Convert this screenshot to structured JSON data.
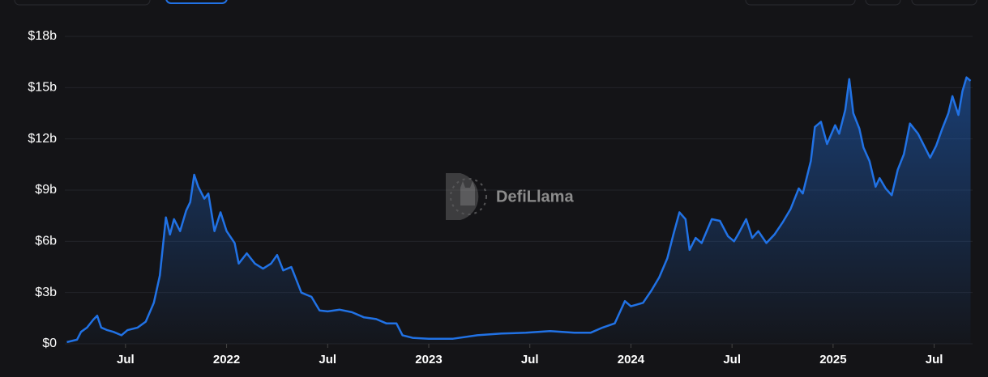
{
  "chart_data": {
    "type": "area",
    "x": [
      2021.21,
      2021.26,
      2021.28,
      2021.31,
      2021.34,
      2021.36,
      2021.38,
      2021.41,
      2021.44,
      2021.48,
      2021.51,
      2021.56,
      2021.6,
      2021.64,
      2021.67,
      2021.7,
      2021.72,
      2021.74,
      2021.77,
      2021.8,
      2021.82,
      2021.84,
      2021.86,
      2021.89,
      2021.91,
      2021.94,
      2021.97,
      2022.0,
      2022.04,
      2022.06,
      2022.1,
      2022.14,
      2022.18,
      2022.22,
      2022.25,
      2022.28,
      2022.32,
      2022.34,
      2022.37,
      2022.42,
      2022.46,
      2022.5,
      2022.56,
      2022.62,
      2022.68,
      2022.74,
      2022.79,
      2022.84,
      2022.87,
      2022.92,
      2023.0,
      2023.12,
      2023.24,
      2023.36,
      2023.48,
      2023.6,
      2023.72,
      2023.8,
      2023.86,
      2023.92,
      2023.97,
      2024.0,
      2024.06,
      2024.1,
      2024.14,
      2024.18,
      2024.21,
      2024.24,
      2024.27,
      2024.29,
      2024.32,
      2024.35,
      2024.4,
      2024.44,
      2024.48,
      2024.51,
      2024.53,
      2024.57,
      2024.6,
      2024.63,
      2024.67,
      2024.71,
      2024.75,
      2024.79,
      2024.83,
      2024.85,
      2024.89,
      2024.91,
      2024.94,
      2024.97,
      2025.01,
      2025.03,
      2025.06,
      2025.08,
      2025.1,
      2025.13,
      2025.15,
      2025.18,
      2025.21,
      2025.23,
      2025.26,
      2025.29,
      2025.32,
      2025.35,
      2025.38,
      2025.42,
      2025.45,
      2025.48,
      2025.51,
      2025.54,
      2025.57,
      2025.59,
      2025.62,
      2025.64,
      2025.66,
      2025.68
    ],
    "values": [
      0.1,
      0.24,
      0.7,
      0.95,
      1.4,
      1.65,
      0.95,
      0.8,
      0.7,
      0.5,
      0.8,
      0.95,
      1.3,
      2.4,
      4.0,
      7.4,
      6.4,
      7.3,
      6.6,
      7.8,
      8.3,
      9.9,
      9.2,
      8.5,
      8.8,
      6.6,
      7.7,
      6.6,
      5.9,
      4.7,
      5.3,
      4.7,
      4.4,
      4.7,
      5.2,
      4.3,
      4.5,
      3.9,
      3.0,
      2.75,
      1.95,
      1.9,
      2.0,
      1.85,
      1.55,
      1.45,
      1.2,
      1.2,
      0.5,
      0.35,
      0.3,
      0.3,
      0.5,
      0.6,
      0.65,
      0.75,
      0.65,
      0.65,
      0.95,
      1.2,
      2.5,
      2.2,
      2.4,
      3.1,
      3.9,
      5.0,
      6.4,
      7.7,
      7.3,
      5.5,
      6.2,
      5.9,
      7.3,
      7.2,
      6.3,
      6.0,
      6.4,
      7.3,
      6.2,
      6.6,
      5.9,
      6.4,
      7.1,
      7.9,
      9.1,
      8.8,
      10.7,
      12.7,
      13.0,
      11.7,
      12.8,
      12.3,
      13.7,
      15.5,
      13.5,
      12.6,
      11.5,
      10.7,
      9.2,
      9.7,
      9.1,
      8.7,
      10.2,
      11.1,
      12.9,
      12.3,
      11.6,
      10.9,
      11.6,
      12.6,
      13.5,
      14.5,
      13.4,
      14.8,
      15.6,
      15.4
    ],
    "color": "#2172e5",
    "xlim": [
      2021.2,
      2025.69
    ],
    "xticks": [
      {
        "value": 2021.5,
        "label": "Jul"
      },
      2022,
      {
        "value": 2022.5,
        "label": "Jul"
      },
      2023,
      {
        "value": 2023.5,
        "label": "Jul"
      },
      2024,
      {
        "value": 2024.5,
        "label": "Jul"
      },
      2025,
      {
        "value": 2025.5,
        "label": "Jul"
      }
    ],
    "ylim": [
      0,
      18
    ],
    "yticks": [
      {
        "value": 0,
        "label": "$0"
      },
      {
        "value": 3,
        "label": "$3b"
      },
      {
        "value": 6,
        "label": "$6b"
      },
      {
        "value": 9,
        "label": "$9b"
      },
      {
        "value": 12,
        "label": "$12b"
      },
      {
        "value": 15,
        "label": "$15b"
      },
      {
        "value": 18,
        "label": "$18b"
      }
    ],
    "grid": true,
    "watermark": "DefiLlama"
  }
}
